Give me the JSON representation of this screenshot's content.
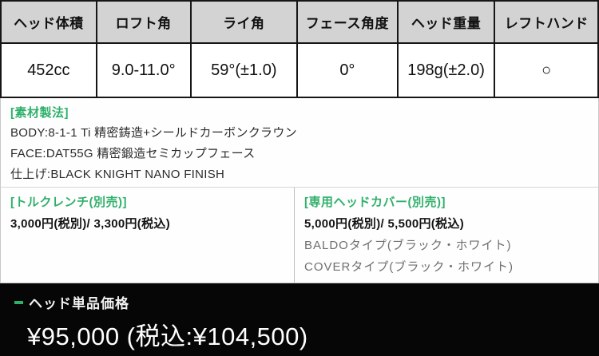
{
  "colors": {
    "accent_green": "#2fb06a",
    "table_header_bg": "#d3d3d3",
    "table_border": "#161616",
    "price_bar_bg": "#060606"
  },
  "spec_table": {
    "columns": [
      {
        "header": "ヘッド体積",
        "value": "452cc"
      },
      {
        "header": "ロフト角",
        "value": "9.0-11.0°"
      },
      {
        "header": "ライ角",
        "value": "59°(±1.0)"
      },
      {
        "header": "フェース角度",
        "value": "0°"
      },
      {
        "header": "ヘッド重量",
        "value": "198g(±2.0)"
      },
      {
        "header": "レフトハンド",
        "value": "○"
      }
    ]
  },
  "material": {
    "title": "[素材製法]",
    "lines": [
      "BODY:8-1-1 Ti 精密鋳造+シールドカーボンクラウン",
      "FACE:DAT55G 精密鍛造セミカップフェース",
      "仕上げ:BLACK KNIGHT NANO FINISH"
    ]
  },
  "torque_wrench": {
    "title": "[トルクレンチ(別売)]",
    "price": "3,000円(税別)/ 3,300円(税込)"
  },
  "head_cover": {
    "title": "[専用ヘッドカバー(別売)]",
    "price": "5,000円(税別)/ 5,500円(税込)",
    "options": [
      "BALDOタイプ(ブラック・ホワイト)",
      "COVERタイプ(ブラック・ホワイト)"
    ]
  },
  "price_bar": {
    "label": "ヘッド単品価格",
    "price": "¥95,000 (税込:¥104,500)"
  }
}
